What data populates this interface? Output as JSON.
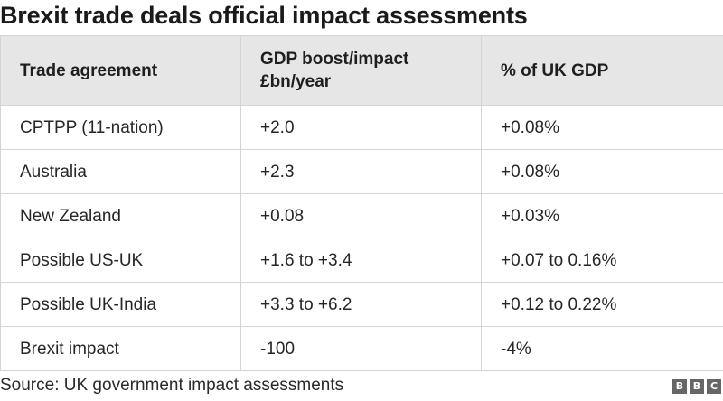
{
  "title": "Brexit trade deals official impact assessments",
  "chart_data": {
    "type": "table",
    "columns": [
      "Trade agreement",
      "GDP boost/impact £bn/year",
      "% of UK GDP"
    ],
    "column_lines": [
      [
        "Trade agreement"
      ],
      [
        "GDP boost/impact",
        "£bn/year"
      ],
      [
        "% of UK GDP"
      ]
    ],
    "rows": [
      [
        "CPTPP (11-nation)",
        "+2.0",
        "+0.08%"
      ],
      [
        "Australia",
        "+2.3",
        "+0.08%"
      ],
      [
        "New Zealand",
        "+0.08",
        "+0.03%"
      ],
      [
        "Possible US-UK",
        "+1.6 to +3.4",
        "+0.07 to 0.16%"
      ],
      [
        "Possible UK-India",
        "+3.3 to +6.2",
        "+0.12 to 0.22%"
      ],
      [
        "Brexit impact",
        "-100",
        "-4%"
      ]
    ]
  },
  "source": "Source: UK government impact assessments",
  "logo": {
    "letters": [
      "B",
      "B",
      "C"
    ],
    "color": "#666666"
  },
  "colors": {
    "header_background": "#e6e6e6",
    "border": "#d4d4d4",
    "text": "#222222"
  }
}
